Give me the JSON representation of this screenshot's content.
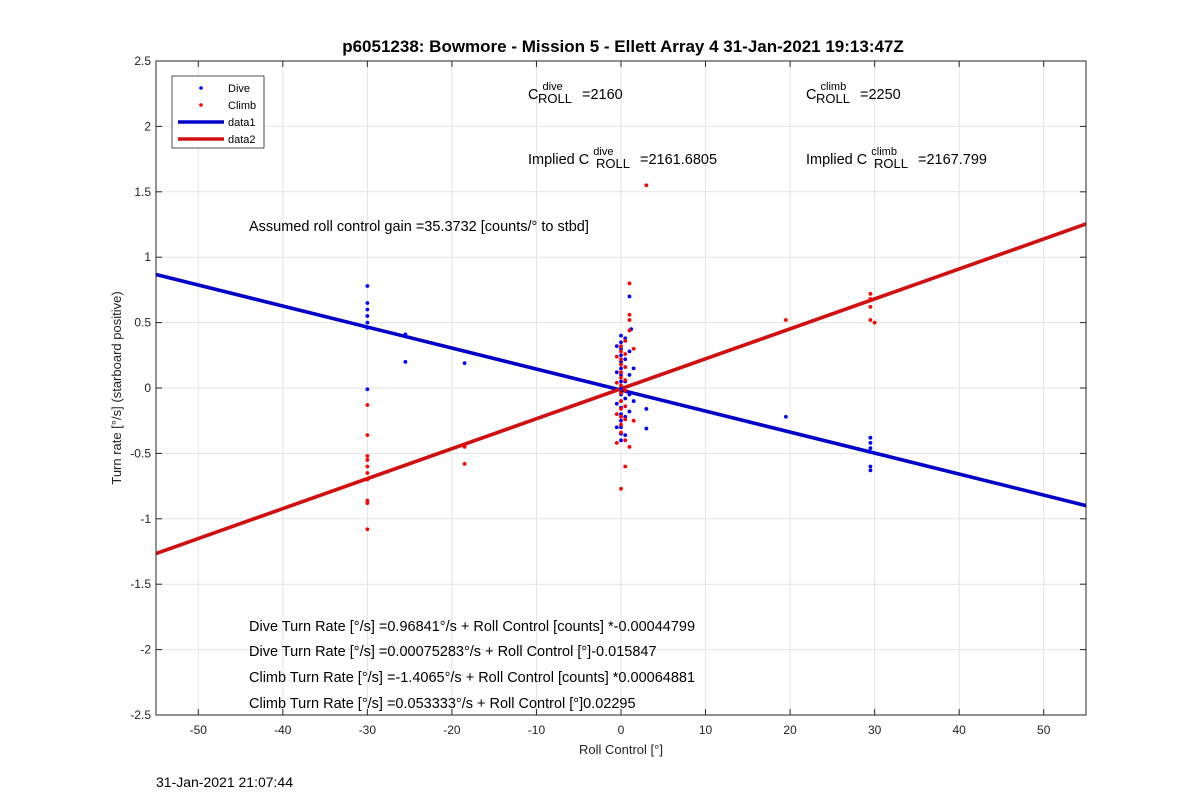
{
  "timestamp": "31-Jan-2021 21:07:44",
  "chart_data": {
    "type": "scatter",
    "title": "p6051238: Bowmore - Mission 5 - Ellett Array 4 31-Jan-2021 19:13:47Z",
    "xlabel": "Roll Control [°]",
    "ylabel": "Turn rate [°/s] (starboard positive)",
    "xlim": [
      -55,
      55
    ],
    "ylim": [
      -2.5,
      2.5
    ],
    "xticks": [
      -50,
      -40,
      -30,
      -20,
      -10,
      0,
      10,
      20,
      30,
      40,
      50
    ],
    "yticks": [
      -2.5,
      -2,
      -1.5,
      -1,
      -0.5,
      0,
      0.5,
      1,
      1.5,
      2,
      2.5
    ],
    "xtick_labels": [
      "-50",
      "-40",
      "-30",
      "-20",
      "-10",
      "0",
      "10",
      "20",
      "30",
      "40",
      "50"
    ],
    "ytick_labels": [
      "-2.5",
      "-2",
      "-1.5",
      "-1",
      "-0.5",
      "0",
      "0.5",
      "1",
      "1.5",
      "2",
      "2.5"
    ],
    "grid": true,
    "legend": {
      "placement": "top-left",
      "entries": [
        "Dive",
        "Climb",
        "data1",
        "data2"
      ]
    },
    "series": [
      {
        "name": "Dive",
        "kind": "points",
        "color": "#0000ff",
        "points": [
          [
            -30,
            0.78
          ],
          [
            -30,
            0.65
          ],
          [
            -30,
            0.6
          ],
          [
            -30,
            0.55
          ],
          [
            -30,
            0.5
          ],
          [
            -30,
            0.46
          ],
          [
            -30,
            -0.01
          ],
          [
            -25.5,
            0.41
          ],
          [
            -25.5,
            0.2
          ],
          [
            -18.5,
            0.19
          ],
          [
            0,
            0.4
          ],
          [
            0,
            0.35
          ],
          [
            0,
            0.3
          ],
          [
            0,
            0.25
          ],
          [
            0,
            0.2
          ],
          [
            0,
            0.15
          ],
          [
            0,
            0.1
          ],
          [
            0,
            0.05
          ],
          [
            0,
            0
          ],
          [
            0,
            -0.05
          ],
          [
            0,
            -0.1
          ],
          [
            0,
            -0.15
          ],
          [
            0,
            -0.2
          ],
          [
            0,
            -0.25
          ],
          [
            0,
            -0.3
          ],
          [
            0,
            -0.35
          ],
          [
            0,
            -0.4
          ],
          [
            -0.5,
            0.32
          ],
          [
            -0.5,
            0.12
          ],
          [
            -0.5,
            -0.12
          ],
          [
            -0.5,
            -0.3
          ],
          [
            0.5,
            0.38
          ],
          [
            0.5,
            0.22
          ],
          [
            0.5,
            0.05
          ],
          [
            0.5,
            -0.08
          ],
          [
            0.5,
            -0.22
          ],
          [
            0.5,
            -0.36
          ],
          [
            1,
            0.28
          ],
          [
            1,
            0.1
          ],
          [
            1,
            -0.05
          ],
          [
            1,
            -0.18
          ],
          [
            1.5,
            0.15
          ],
          [
            1.5,
            -0.1
          ],
          [
            1,
            0.7
          ],
          [
            1.2,
            0.45
          ],
          [
            3,
            -0.16
          ],
          [
            3,
            -0.31
          ],
          [
            19.5,
            -0.22
          ],
          [
            29.5,
            -0.38
          ],
          [
            29.5,
            -0.42
          ],
          [
            29.5,
            -0.46
          ],
          [
            29.5,
            -0.49
          ],
          [
            29.5,
            -0.6
          ],
          [
            29.5,
            -0.63
          ]
        ]
      },
      {
        "name": "Climb",
        "kind": "points",
        "color": "#ff0000",
        "points": [
          [
            -30,
            -0.13
          ],
          [
            -30,
            -0.36
          ],
          [
            -30,
            -0.52
          ],
          [
            -30,
            -0.55
          ],
          [
            -30,
            -0.6
          ],
          [
            -30,
            -0.65
          ],
          [
            -30,
            -0.7
          ],
          [
            -30,
            -0.86
          ],
          [
            -30,
            -0.88
          ],
          [
            -30,
            -1.08
          ],
          [
            -18.5,
            -0.45
          ],
          [
            -18.5,
            -0.58
          ],
          [
            3,
            1.55
          ],
          [
            1,
            0.8
          ],
          [
            1,
            0.56
          ],
          [
            1,
            0.52
          ],
          [
            1,
            0.44
          ],
          [
            0,
            0.32
          ],
          [
            0,
            0.28
          ],
          [
            0,
            0.22
          ],
          [
            0,
            0.18
          ],
          [
            0,
            0.12
          ],
          [
            0,
            0.08
          ],
          [
            0,
            0.02
          ],
          [
            0,
            -0.04
          ],
          [
            0,
            -0.1
          ],
          [
            0,
            -0.16
          ],
          [
            0,
            -0.22
          ],
          [
            0,
            -0.28
          ],
          [
            0,
            -0.34
          ],
          [
            0.5,
            0.36
          ],
          [
            0.5,
            0.26
          ],
          [
            0.5,
            0.16
          ],
          [
            0.5,
            0.06
          ],
          [
            0.5,
            -0.02
          ],
          [
            0.5,
            -0.14
          ],
          [
            0.5,
            -0.24
          ],
          [
            0.5,
            -0.4
          ],
          [
            -0.5,
            0.24
          ],
          [
            -0.5,
            0.04
          ],
          [
            -0.5,
            -0.2
          ],
          [
            -0.5,
            -0.42
          ],
          [
            1,
            -0.45
          ],
          [
            0.5,
            -0.6
          ],
          [
            0,
            -0.77
          ],
          [
            1.5,
            0.3
          ],
          [
            1.5,
            -0.25
          ],
          [
            19.5,
            0.52
          ],
          [
            29.5,
            0.72
          ],
          [
            29.5,
            0.68
          ],
          [
            29.5,
            0.62
          ],
          [
            29.5,
            0.52
          ],
          [
            30,
            0.5
          ]
        ]
      },
      {
        "name": "data1",
        "kind": "line",
        "color": "#0000c8",
        "x": [
          -55,
          55
        ],
        "y": [
          0.8673,
          -0.899
        ]
      },
      {
        "name": "data2",
        "kind": "line",
        "color": "#d01010",
        "x": [
          -55,
          55
        ],
        "y": [
          -1.2657,
          1.254
        ]
      }
    ],
    "annotations": {
      "gain": "Assumed roll control gain =35.3732 [counts/° to stbd]",
      "c_dive": {
        "base": "C",
        "sup": "dive",
        "sub": "ROLL",
        "value": "=2160"
      },
      "c_climb": {
        "base": "C",
        "sup": "climb",
        "sub": "ROLL",
        "value": "=2250"
      },
      "implied_dive": {
        "prefix": "Implied C",
        "sup": "dive",
        "sub": "ROLL",
        "value": "=2161.6805"
      },
      "implied_climb": {
        "prefix": "Implied C",
        "sup": "climb",
        "sub": "ROLL",
        "value": "=2167.799"
      },
      "fits": [
        "Dive Turn Rate [°/s] =0.96841°/s + Roll Control [counts] *-0.00044799",
        "Dive Turn Rate [°/s] =0.00075283°/s + Roll Control [°]-0.015847",
        "Climb Turn Rate [°/s] =-1.4065°/s + Roll Control [counts] *0.00064881",
        "Climb Turn Rate [°/s] =0.053333°/s + Roll Control [°]0.02295"
      ]
    }
  }
}
